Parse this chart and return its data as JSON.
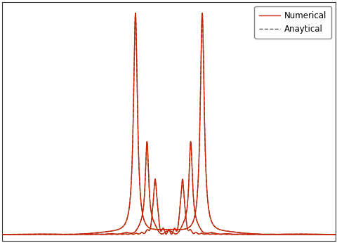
{
  "legend_numerical_label": "Numerical",
  "legend_analytical_label": "Anaytical",
  "numerical_color": "#cc2200",
  "analytical_color": "#555555",
  "numerical_lw": 1.0,
  "analytical_lw": 1.0,
  "analytical_ls": "--",
  "background_color": "#ffffff",
  "xlim": [
    -5.5,
    5.5
  ],
  "ylim": [
    -0.03,
    1.05
  ],
  "figsize": [
    4.81,
    3.46
  ],
  "dpi": 100,
  "n_points": 8000,
  "curves": [
    {
      "gamma": 0.08,
      "d": 1.1,
      "scale": 1.0,
      "n_osc": 1
    },
    {
      "gamma": 0.07,
      "d": 0.72,
      "scale": 0.42,
      "n_osc": 3
    },
    {
      "gamma": 0.06,
      "d": 0.45,
      "scale": 0.25,
      "n_osc": 5
    }
  ]
}
